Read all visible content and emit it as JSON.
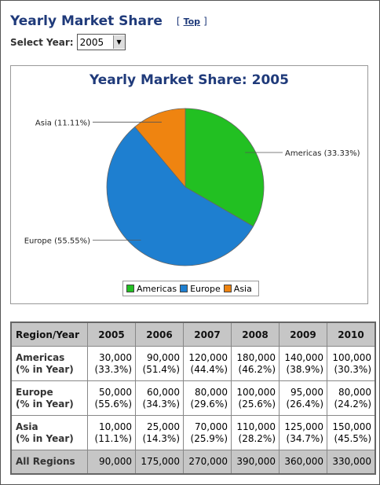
{
  "page": {
    "title": "Yearly Market Share",
    "top_bracket_open": "[",
    "top_link": "Top",
    "top_bracket_close": "]",
    "select_label": "Select Year:",
    "select_value": "2005",
    "select_arrow_icon": "dropdown-arrow"
  },
  "chart_data": {
    "type": "pie",
    "title": "Yearly Market Share: 2005",
    "slices": [
      {
        "name": "Americas",
        "value": 33.33,
        "label": "Americas (33.33%)",
        "color": "#22c022"
      },
      {
        "name": "Europe",
        "value": 55.55,
        "label": "Europe (55.55%)",
        "color": "#1e7fd0"
      },
      {
        "name": "Asia",
        "value": 11.11,
        "label": "Asia (11.11%)",
        "color": "#ef8410"
      }
    ],
    "legend": [
      "Americas",
      "Europe",
      "Asia"
    ],
    "legend_position": "bottom"
  },
  "table": {
    "corner": "Region/Year",
    "years": [
      "2005",
      "2006",
      "2007",
      "2008",
      "2009",
      "2010"
    ],
    "rows": [
      {
        "label1": "Americas",
        "label2": "(% in Year)",
        "values": [
          "30,000",
          "90,000",
          "120,000",
          "180,000",
          "140,000",
          "100,000"
        ],
        "pcts": [
          "(33.3%)",
          "(51.4%)",
          "(44.4%)",
          "(46.2%)",
          "(38.9%)",
          "(30.3%)"
        ]
      },
      {
        "label1": "Europe",
        "label2": "(% in Year)",
        "values": [
          "50,000",
          "60,000",
          "80,000",
          "100,000",
          "95,000",
          "80,000"
        ],
        "pcts": [
          "(55.6%)",
          "(34.3%)",
          "(29.6%)",
          "(25.6%)",
          "(26.4%)",
          "(24.2%)"
        ]
      },
      {
        "label1": "Asia",
        "label2": "(% in Year)",
        "values": [
          "10,000",
          "25,000",
          "70,000",
          "110,000",
          "125,000",
          "150,000"
        ],
        "pcts": [
          "(11.1%)",
          "(14.3%)",
          "(25.9%)",
          "(28.2%)",
          "(34.7%)",
          "(45.5%)"
        ]
      }
    ],
    "total_label": "All Regions",
    "totals": [
      "90,000",
      "175,000",
      "270,000",
      "390,000",
      "360,000",
      "330,000"
    ]
  }
}
